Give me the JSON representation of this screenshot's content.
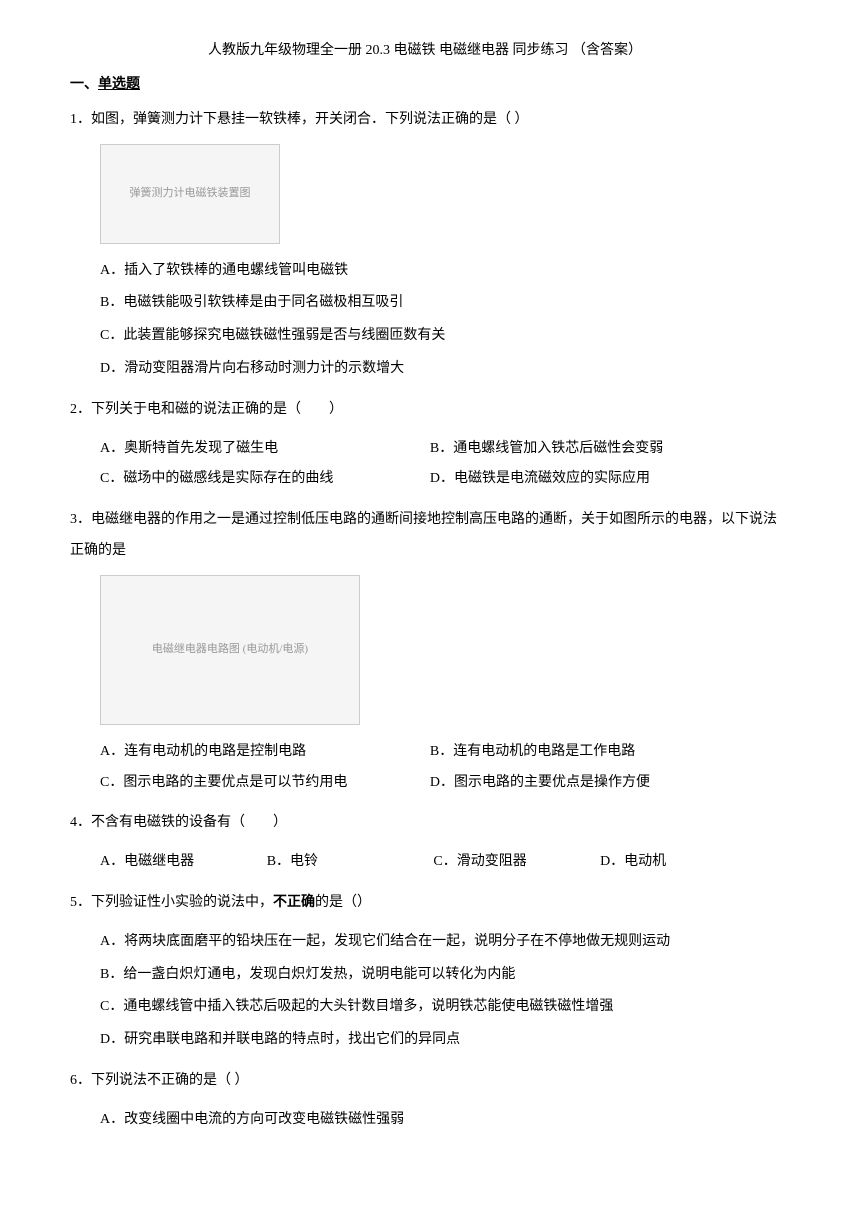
{
  "title": "人教版九年级物理全一册 20.3 电磁铁 电磁继电器 同步练习 （含答案）",
  "section_prefix": "一、",
  "section_title": "单选题",
  "q1": {
    "num": "1．",
    "text": "如图，弹簧测力计下悬挂一软铁棒，开关闭合．下列说法正确的是（  ）",
    "img_label": "弹簧测力计电磁铁装置图",
    "a": "A．插入了软铁棒的通电螺线管叫电磁铁",
    "b": "B．电磁铁能吸引软铁棒是由于同名磁极相互吸引",
    "c": "C．此装置能够探究电磁铁磁性强弱是否与线圈匝数有关",
    "d": "D．滑动变阻器滑片向右移动时测力计的示数增大"
  },
  "q2": {
    "num": "2．",
    "text": "下列关于电和磁的说法正确的是（　　）",
    "a": "A．奥斯特首先发现了磁生电",
    "b": "B．通电螺线管加入铁芯后磁性会变弱",
    "c": "C．磁场中的磁感线是实际存在的曲线",
    "d": "D．电磁铁是电流磁效应的实际应用"
  },
  "q3": {
    "num": "3．",
    "text": "电磁继电器的作用之一是通过控制低压电路的通断间接地控制高压电路的通断，关于如图所示的电器，以下说法正确的是",
    "img_label": "电磁继电器电路图 (电动机/电源)",
    "a": "A．连有电动机的电路是控制电路",
    "b": "B．连有电动机的电路是工作电路",
    "c": "C．图示电路的主要优点是可以节约用电",
    "d": "D．图示电路的主要优点是操作方便"
  },
  "q4": {
    "num": "4．",
    "text": "不含有电磁铁的设备有（　　）",
    "a": "A．电磁继电器",
    "b": "B．电铃",
    "c": "C．滑动变阻器",
    "d": "D．电动机"
  },
  "q5": {
    "num": "5．",
    "text_before": "下列验证性小实验的说法中，",
    "text_bold": "不正确",
    "text_after": "的是（）",
    "a": "A．将两块底面磨平的铅块压在一起，发现它们结合在一起，说明分子在不停地做无规则运动",
    "b": "B．给一盏白炽灯通电，发现白炽灯发热，说明电能可以转化为内能",
    "c": "C．通电螺线管中插入铁芯后吸起的大头针数目增多，说明铁芯能使电磁铁磁性增强",
    "d": "D．研究串联电路和并联电路的特点时，找出它们的异同点"
  },
  "q6": {
    "num": "6．",
    "text": "下列说法不正确的是（  ）",
    "a": "A．改变线圈中电流的方向可改变电磁铁磁性强弱"
  }
}
